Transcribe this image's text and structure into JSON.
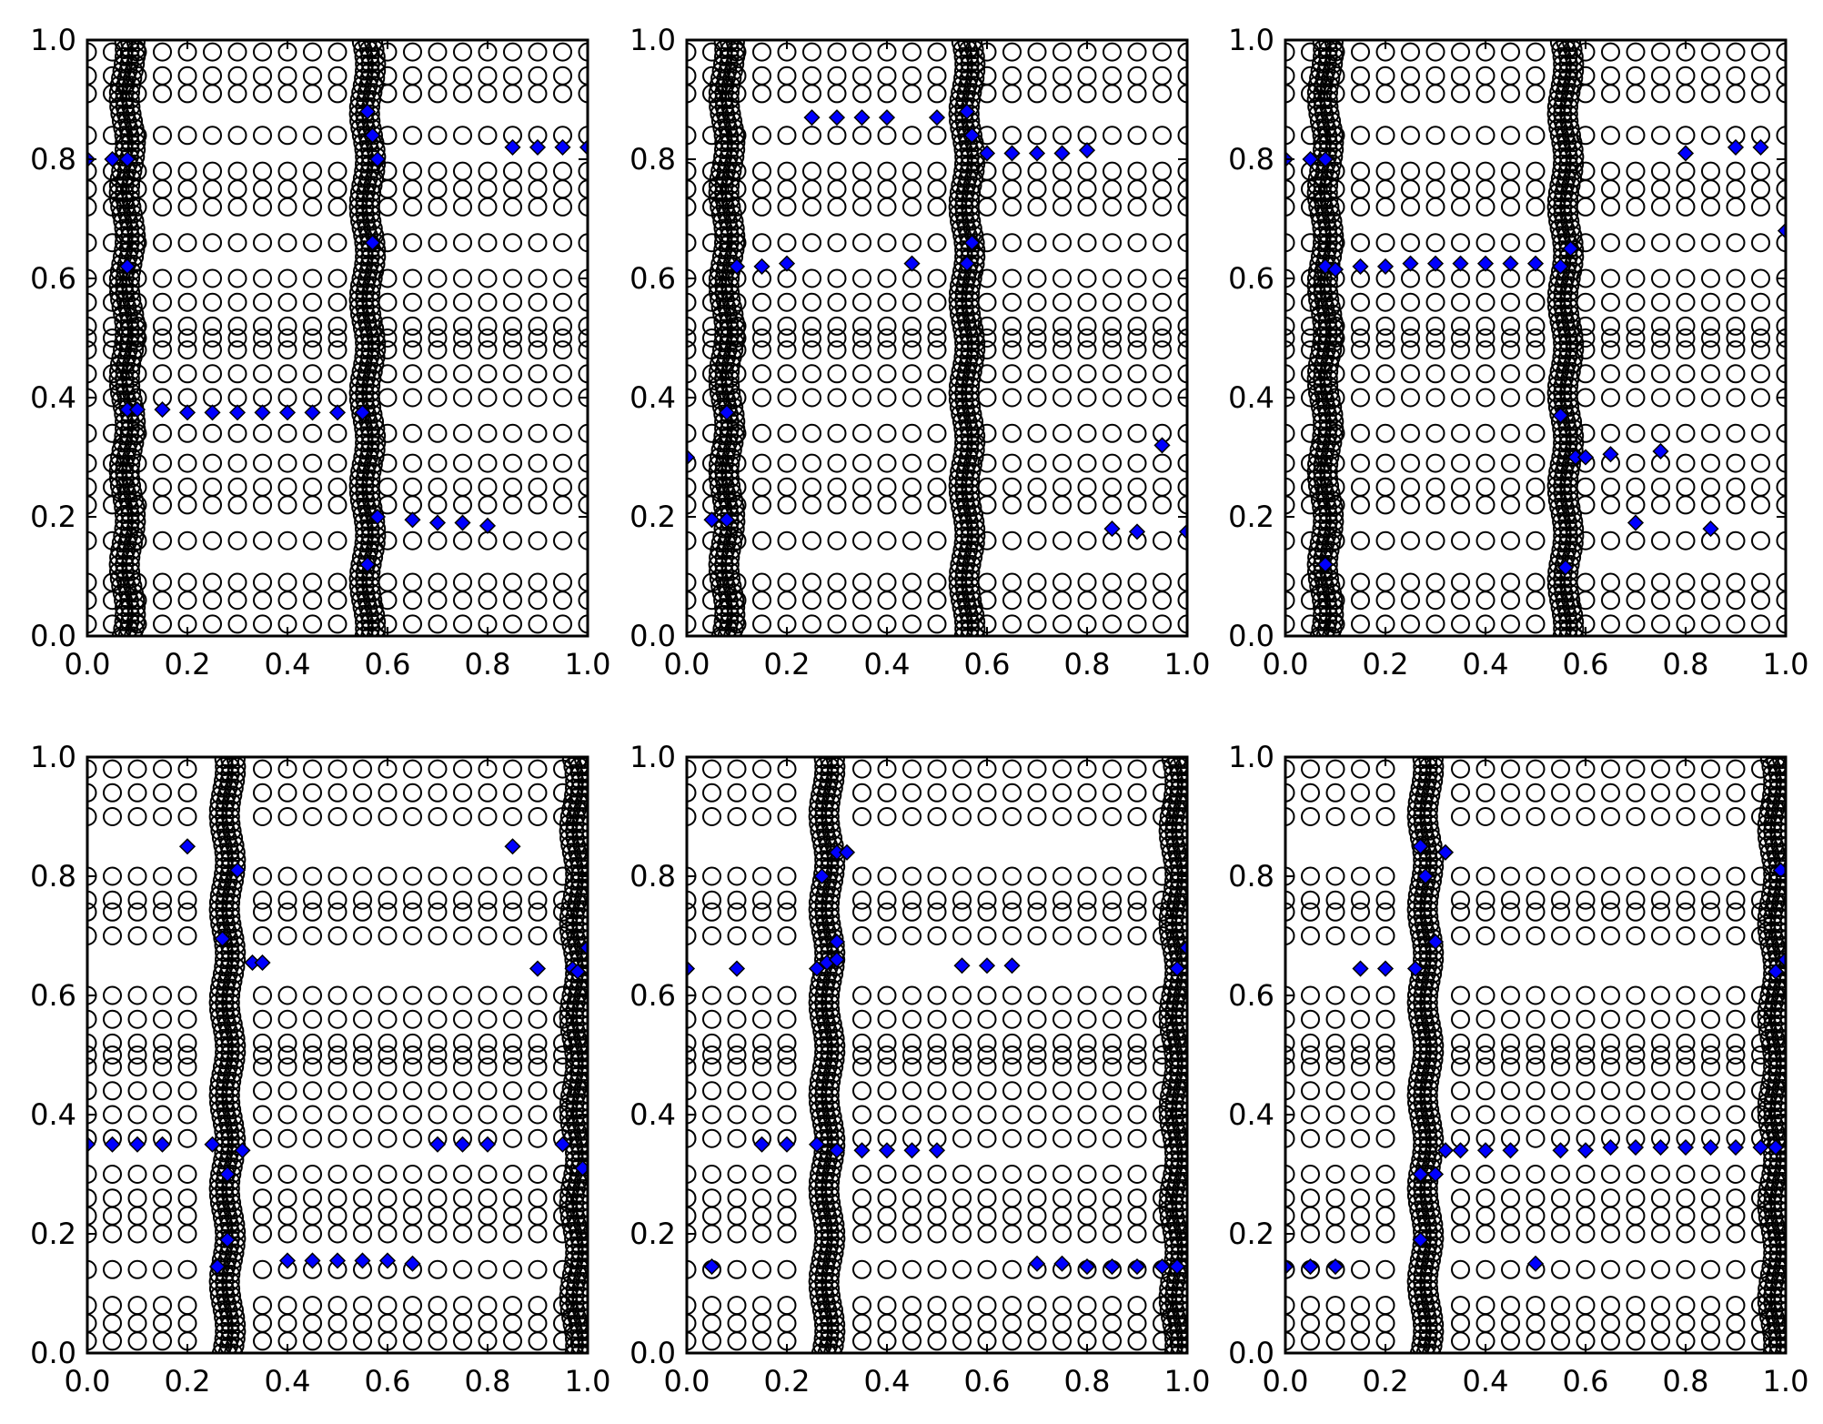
{
  "chart_data": [
    {
      "type": "scatter",
      "panel": "top-left",
      "xlim": [
        0,
        1
      ],
      "ylim": [
        0,
        1
      ],
      "xticks": [
        "0.0",
        "0.2",
        "0.4",
        "0.6",
        "0.8",
        "1.0"
      ],
      "yticks": [
        "0.0",
        "0.2",
        "0.4",
        "0.6",
        "0.8",
        "1.0"
      ],
      "grid": false,
      "legend": "none",
      "circle_columns_x": [
        0.0,
        0.05,
        0.1,
        0.15,
        0.2,
        0.25,
        0.3,
        0.35,
        0.4,
        0.45,
        0.5,
        0.6,
        0.65,
        0.7,
        0.75,
        0.8,
        0.85,
        0.9,
        0.95,
        1.0
      ],
      "dense_columns_x": [
        0.08,
        0.56
      ],
      "circle_rows_y": [
        0.02,
        0.06,
        0.09,
        0.16,
        0.22,
        0.25,
        0.29,
        0.34,
        0.4,
        0.44,
        0.48,
        0.5,
        0.52,
        0.56,
        0.6,
        0.66,
        0.72,
        0.75,
        0.78,
        0.84,
        0.91,
        0.94,
        0.98
      ],
      "series": [
        {
          "marker": "diamond",
          "color": "#0000ff",
          "points": [
            [
              0.0,
              0.8
            ],
            [
              0.05,
              0.8
            ],
            [
              0.08,
              0.8
            ],
            [
              0.08,
              0.62
            ],
            [
              0.08,
              0.38
            ],
            [
              0.1,
              0.38
            ],
            [
              0.15,
              0.38
            ],
            [
              0.2,
              0.375
            ],
            [
              0.25,
              0.375
            ],
            [
              0.3,
              0.375
            ],
            [
              0.35,
              0.375
            ],
            [
              0.4,
              0.375
            ],
            [
              0.45,
              0.375
            ],
            [
              0.5,
              0.375
            ],
            [
              0.55,
              0.375
            ],
            [
              0.56,
              0.88
            ],
            [
              0.57,
              0.84
            ],
            [
              0.58,
              0.8
            ],
            [
              0.57,
              0.66
            ],
            [
              0.58,
              0.2
            ],
            [
              0.65,
              0.195
            ],
            [
              0.7,
              0.19
            ],
            [
              0.75,
              0.19
            ],
            [
              0.8,
              0.185
            ],
            [
              0.56,
              0.12
            ],
            [
              0.85,
              0.82
            ],
            [
              0.9,
              0.82
            ],
            [
              0.95,
              0.82
            ],
            [
              1.0,
              0.82
            ]
          ]
        }
      ]
    },
    {
      "type": "scatter",
      "panel": "top-middle",
      "xlim": [
        0,
        1
      ],
      "ylim": [
        0,
        1
      ],
      "xticks": [
        "0.0",
        "0.2",
        "0.4",
        "0.6",
        "0.8",
        "1.0"
      ],
      "yticks": [
        "0.0",
        "0.2",
        "0.4",
        "0.6",
        "0.8",
        "1.0"
      ],
      "grid": false,
      "legend": "none",
      "circle_columns_x": [
        0.0,
        0.05,
        0.1,
        0.15,
        0.2,
        0.25,
        0.3,
        0.35,
        0.4,
        0.45,
        0.5,
        0.6,
        0.65,
        0.7,
        0.75,
        0.8,
        0.85,
        0.9,
        0.95,
        1.0
      ],
      "dense_columns_x": [
        0.08,
        0.56
      ],
      "circle_rows_y": [
        0.02,
        0.06,
        0.09,
        0.16,
        0.22,
        0.25,
        0.29,
        0.34,
        0.4,
        0.44,
        0.48,
        0.5,
        0.52,
        0.56,
        0.6,
        0.66,
        0.72,
        0.75,
        0.78,
        0.84,
        0.91,
        0.94,
        0.98
      ],
      "series": [
        {
          "marker": "diamond",
          "color": "#0000ff",
          "points": [
            [
              0.25,
              0.87
            ],
            [
              0.3,
              0.87
            ],
            [
              0.35,
              0.87
            ],
            [
              0.4,
              0.87
            ],
            [
              0.5,
              0.87
            ],
            [
              0.56,
              0.88
            ],
            [
              0.57,
              0.84
            ],
            [
              0.6,
              0.81
            ],
            [
              0.65,
              0.81
            ],
            [
              0.7,
              0.81
            ],
            [
              0.75,
              0.81
            ],
            [
              0.8,
              0.815
            ],
            [
              0.1,
              0.62
            ],
            [
              0.15,
              0.62
            ],
            [
              0.2,
              0.625
            ],
            [
              0.45,
              0.625
            ],
            [
              0.56,
              0.625
            ],
            [
              0.57,
              0.66
            ],
            [
              0.08,
              0.375
            ],
            [
              0.0,
              0.3
            ],
            [
              0.05,
              0.195
            ],
            [
              0.08,
              0.195
            ],
            [
              0.95,
              0.32
            ],
            [
              0.85,
              0.18
            ],
            [
              0.9,
              0.175
            ],
            [
              1.0,
              0.175
            ]
          ]
        }
      ]
    },
    {
      "type": "scatter",
      "panel": "top-right",
      "xlim": [
        0,
        1
      ],
      "ylim": [
        0,
        1
      ],
      "xticks": [
        "0.0",
        "0.2",
        "0.4",
        "0.6",
        "0.8",
        "1.0"
      ],
      "yticks": [
        "0.0",
        "0.2",
        "0.4",
        "0.6",
        "0.8",
        "1.0"
      ],
      "grid": false,
      "legend": "none",
      "circle_columns_x": [
        0.0,
        0.05,
        0.1,
        0.15,
        0.2,
        0.25,
        0.3,
        0.35,
        0.4,
        0.45,
        0.5,
        0.6,
        0.65,
        0.7,
        0.75,
        0.8,
        0.85,
        0.9,
        0.95,
        1.0
      ],
      "dense_columns_x": [
        0.08,
        0.56
      ],
      "circle_rows_y": [
        0.02,
        0.06,
        0.09,
        0.16,
        0.22,
        0.25,
        0.29,
        0.34,
        0.4,
        0.44,
        0.48,
        0.5,
        0.52,
        0.56,
        0.6,
        0.66,
        0.72,
        0.75,
        0.78,
        0.84,
        0.91,
        0.94,
        0.98
      ],
      "series": [
        {
          "marker": "diamond",
          "color": "#0000ff",
          "points": [
            [
              0.0,
              0.8
            ],
            [
              0.05,
              0.8
            ],
            [
              0.08,
              0.8
            ],
            [
              0.08,
              0.62
            ],
            [
              0.1,
              0.615
            ],
            [
              0.15,
              0.62
            ],
            [
              0.2,
              0.62
            ],
            [
              0.25,
              0.625
            ],
            [
              0.3,
              0.625
            ],
            [
              0.35,
              0.625
            ],
            [
              0.4,
              0.625
            ],
            [
              0.45,
              0.625
            ],
            [
              0.5,
              0.625
            ],
            [
              0.55,
              0.62
            ],
            [
              0.57,
              0.65
            ],
            [
              0.55,
              0.37
            ],
            [
              0.58,
              0.3
            ],
            [
              0.6,
              0.3
            ],
            [
              0.65,
              0.305
            ],
            [
              0.75,
              0.31
            ],
            [
              0.7,
              0.19
            ],
            [
              0.85,
              0.18
            ],
            [
              0.08,
              0.12
            ],
            [
              0.56,
              0.115
            ],
            [
              0.8,
              0.81
            ],
            [
              0.9,
              0.82
            ],
            [
              0.95,
              0.82
            ],
            [
              1.0,
              0.68
            ]
          ]
        }
      ]
    },
    {
      "type": "scatter",
      "panel": "bottom-left",
      "xlim": [
        0,
        1
      ],
      "ylim": [
        0,
        1
      ],
      "xticks": [
        "0.0",
        "0.2",
        "0.4",
        "0.6",
        "0.8",
        "1.0"
      ],
      "yticks": [
        "0.0",
        "0.2",
        "0.4",
        "0.6",
        "0.8",
        "1.0"
      ],
      "grid": false,
      "legend": "none",
      "circle_columns_x": [
        0.0,
        0.05,
        0.1,
        0.15,
        0.2,
        0.35,
        0.4,
        0.45,
        0.5,
        0.55,
        0.6,
        0.65,
        0.7,
        0.75,
        0.8,
        0.85,
        0.9,
        0.95
      ],
      "dense_columns_x": [
        0.28,
        0.98
      ],
      "circle_rows_y": [
        0.02,
        0.05,
        0.08,
        0.14,
        0.2,
        0.23,
        0.26,
        0.3,
        0.36,
        0.4,
        0.44,
        0.48,
        0.5,
        0.52,
        0.56,
        0.6,
        0.7,
        0.74,
        0.76,
        0.8,
        0.9,
        0.94,
        0.98
      ],
      "series": [
        {
          "marker": "diamond",
          "color": "#0000ff",
          "points": [
            [
              0.2,
              0.85
            ],
            [
              0.85,
              0.85
            ],
            [
              0.3,
              0.81
            ],
            [
              0.27,
              0.695
            ],
            [
              0.33,
              0.655
            ],
            [
              0.35,
              0.655
            ],
            [
              0.9,
              0.645
            ],
            [
              0.97,
              0.645
            ],
            [
              0.98,
              0.64
            ],
            [
              1.0,
              0.68
            ],
            [
              0.0,
              0.35
            ],
            [
              0.05,
              0.35
            ],
            [
              0.1,
              0.35
            ],
            [
              0.15,
              0.35
            ],
            [
              0.25,
              0.35
            ],
            [
              0.28,
              0.3
            ],
            [
              0.31,
              0.34
            ],
            [
              0.7,
              0.35
            ],
            [
              0.75,
              0.35
            ],
            [
              0.8,
              0.35
            ],
            [
              0.95,
              0.35
            ],
            [
              0.99,
              0.31
            ],
            [
              0.28,
              0.19
            ],
            [
              0.26,
              0.145
            ],
            [
              0.4,
              0.155
            ],
            [
              0.45,
              0.155
            ],
            [
              0.5,
              0.155
            ],
            [
              0.55,
              0.155
            ],
            [
              0.6,
              0.155
            ],
            [
              0.65,
              0.15
            ]
          ]
        }
      ]
    },
    {
      "type": "scatter",
      "panel": "bottom-middle",
      "xlim": [
        0,
        1
      ],
      "ylim": [
        0,
        1
      ],
      "xticks": [
        "0.0",
        "0.2",
        "0.4",
        "0.6",
        "0.8",
        "1.0"
      ],
      "yticks": [
        "0.0",
        "0.2",
        "0.4",
        "0.6",
        "0.8",
        "1.0"
      ],
      "grid": false,
      "legend": "none",
      "circle_columns_x": [
        0.0,
        0.05,
        0.1,
        0.15,
        0.2,
        0.35,
        0.4,
        0.45,
        0.5,
        0.55,
        0.6,
        0.65,
        0.7,
        0.75,
        0.8,
        0.85,
        0.9,
        0.95
      ],
      "dense_columns_x": [
        0.28,
        0.98
      ],
      "circle_rows_y": [
        0.02,
        0.05,
        0.08,
        0.14,
        0.2,
        0.23,
        0.26,
        0.3,
        0.36,
        0.4,
        0.44,
        0.48,
        0.5,
        0.52,
        0.56,
        0.6,
        0.7,
        0.74,
        0.76,
        0.8,
        0.9,
        0.94,
        0.98
      ],
      "series": [
        {
          "marker": "diamond",
          "color": "#0000ff",
          "points": [
            [
              0.3,
              0.84
            ],
            [
              0.32,
              0.84
            ],
            [
              0.27,
              0.8
            ],
            [
              0.3,
              0.69
            ],
            [
              0.28,
              0.655
            ],
            [
              0.26,
              0.645
            ],
            [
              0.3,
              0.66
            ],
            [
              0.0,
              0.645
            ],
            [
              0.1,
              0.645
            ],
            [
              0.55,
              0.65
            ],
            [
              0.6,
              0.65
            ],
            [
              0.65,
              0.65
            ],
            [
              0.98,
              0.645
            ],
            [
              1.0,
              0.68
            ],
            [
              0.15,
              0.35
            ],
            [
              0.2,
              0.35
            ],
            [
              0.26,
              0.35
            ],
            [
              0.3,
              0.34
            ],
            [
              0.35,
              0.34
            ],
            [
              0.4,
              0.34
            ],
            [
              0.45,
              0.34
            ],
            [
              0.5,
              0.34
            ],
            [
              0.05,
              0.145
            ],
            [
              0.7,
              0.15
            ],
            [
              0.75,
              0.15
            ],
            [
              0.8,
              0.145
            ],
            [
              0.85,
              0.145
            ],
            [
              0.9,
              0.145
            ],
            [
              0.95,
              0.145
            ],
            [
              0.98,
              0.145
            ]
          ]
        }
      ]
    },
    {
      "type": "scatter",
      "panel": "bottom-right",
      "xlim": [
        0,
        1
      ],
      "ylim": [
        0,
        1
      ],
      "xticks": [
        "0.0",
        "0.2",
        "0.4",
        "0.6",
        "0.8",
        "1.0"
      ],
      "yticks": [
        "0.0",
        "0.2",
        "0.4",
        "0.6",
        "0.8",
        "1.0"
      ],
      "grid": false,
      "legend": "none",
      "circle_columns_x": [
        0.0,
        0.05,
        0.1,
        0.15,
        0.2,
        0.35,
        0.4,
        0.45,
        0.5,
        0.55,
        0.6,
        0.65,
        0.7,
        0.75,
        0.8,
        0.85,
        0.9,
        0.95
      ],
      "dense_columns_x": [
        0.28,
        0.98
      ],
      "circle_rows_y": [
        0.02,
        0.05,
        0.08,
        0.14,
        0.2,
        0.23,
        0.26,
        0.3,
        0.36,
        0.4,
        0.44,
        0.48,
        0.5,
        0.52,
        0.56,
        0.6,
        0.7,
        0.74,
        0.76,
        0.8,
        0.9,
        0.94,
        0.98
      ],
      "series": [
        {
          "marker": "diamond",
          "color": "#0000ff",
          "points": [
            [
              0.27,
              0.85
            ],
            [
              0.32,
              0.84
            ],
            [
              0.28,
              0.8
            ],
            [
              0.3,
              0.69
            ],
            [
              0.15,
              0.645
            ],
            [
              0.2,
              0.645
            ],
            [
              0.26,
              0.645
            ],
            [
              0.99,
              0.81
            ],
            [
              0.98,
              0.64
            ],
            [
              1.0,
              0.66
            ],
            [
              0.27,
              0.3
            ],
            [
              0.3,
              0.3
            ],
            [
              0.32,
              0.34
            ],
            [
              0.35,
              0.34
            ],
            [
              0.4,
              0.34
            ],
            [
              0.45,
              0.34
            ],
            [
              0.55,
              0.34
            ],
            [
              0.6,
              0.34
            ],
            [
              0.65,
              0.345
            ],
            [
              0.7,
              0.345
            ],
            [
              0.75,
              0.345
            ],
            [
              0.8,
              0.345
            ],
            [
              0.85,
              0.345
            ],
            [
              0.9,
              0.345
            ],
            [
              0.95,
              0.345
            ],
            [
              0.98,
              0.345
            ],
            [
              0.27,
              0.19
            ],
            [
              0.0,
              0.145
            ],
            [
              0.05,
              0.145
            ],
            [
              0.1,
              0.145
            ],
            [
              0.5,
              0.15
            ]
          ]
        }
      ]
    }
  ]
}
